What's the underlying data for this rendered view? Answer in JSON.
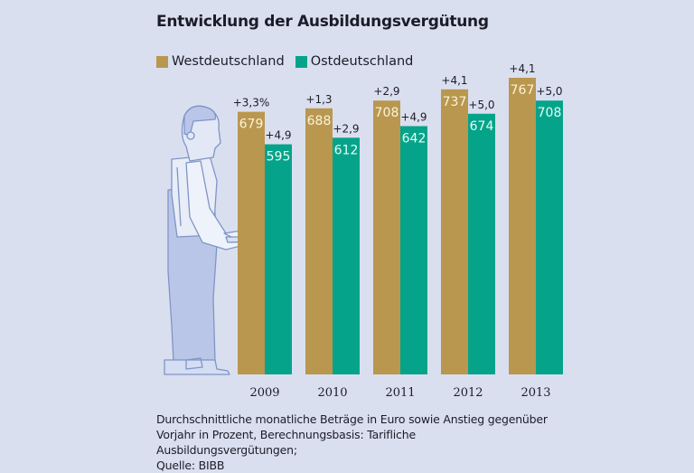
{
  "chart_data": {
    "type": "bar",
    "title": "Entwicklung der Ausbildungsvergütung",
    "categories": [
      "2009",
      "2010",
      "2011",
      "2012",
      "2013"
    ],
    "series": [
      {
        "name": "Westdeutschland",
        "color": "#b9974f",
        "values": [
          679,
          688,
          708,
          737,
          767
        ],
        "changes": [
          "+3,3%",
          "+1,3",
          "+2,9",
          "+4,1",
          "+4,1"
        ]
      },
      {
        "name": "Ostdeutschland",
        "color": "#05a48a",
        "values": [
          595,
          612,
          642,
          674,
          708
        ],
        "changes": [
          "+4,9",
          "+2,9",
          "+4,9",
          "+5,0",
          "+5,0"
        ]
      }
    ],
    "xlabel": "",
    "ylabel": "",
    "ylim": [
      0,
      767
    ],
    "grid": false,
    "legend": "top-left",
    "note": "Durchschnittliche monatliche Beträge in Euro sowie Anstieg gegenüber Vorjahr in Prozent, Berechnungsbasis: Tarifliche Ausbildungsvergütungen; Quelle: BIBB"
  },
  "title": "Entwicklung der Ausbildungsvergütung",
  "legend": [
    {
      "label": "Westdeutschland",
      "color": "#b9974f"
    },
    {
      "label": "Ostdeutschland",
      "color": "#05a48a"
    }
  ],
  "note_lines": [
    "Durchschnittliche monatliche Beträge in Euro sowie Anstieg gegenüber",
    "Vorjahr in Prozent, Berechnungsbasis: Tarifliche Ausbildungsvergütungen;",
    "Quelle: BIBB"
  ],
  "illustration": "apprentice-figure-holding-tray"
}
